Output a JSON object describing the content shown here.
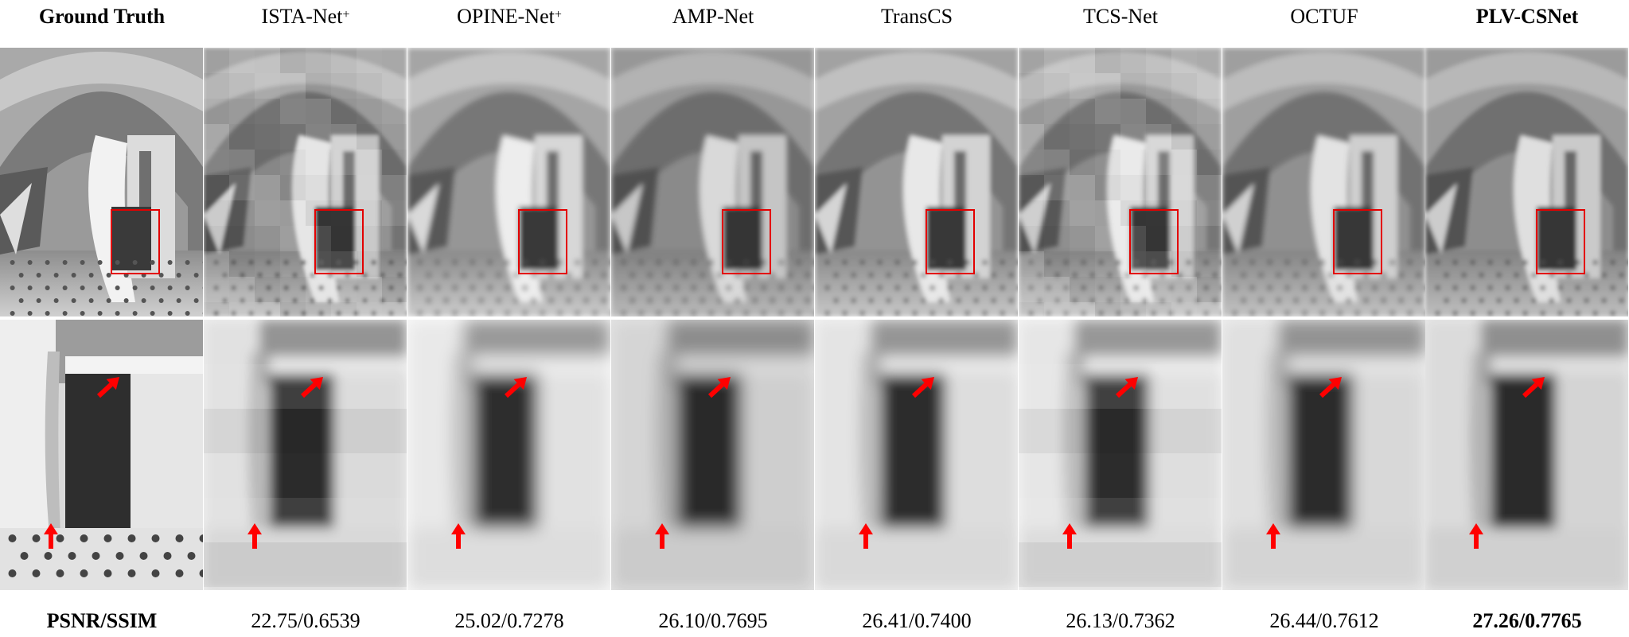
{
  "columns": [
    {
      "id": "gt",
      "name": "Ground Truth",
      "sup": "",
      "bold": true
    },
    {
      "id": "ista",
      "name": "ISTA-Net",
      "sup": "+",
      "bold": false
    },
    {
      "id": "opine",
      "name": "OPINE-Net",
      "sup": "+",
      "bold": false
    },
    {
      "id": "amp",
      "name": "AMP-Net",
      "sup": "",
      "bold": false
    },
    {
      "id": "transcs",
      "name": "TransCS",
      "sup": "",
      "bold": false
    },
    {
      "id": "tcs",
      "name": "TCS-Net",
      "sup": "",
      "bold": false
    },
    {
      "id": "octuf",
      "name": "OCTUF",
      "sup": "",
      "bold": false
    },
    {
      "id": "plv",
      "name": "PLV-CSNet",
      "sup": "",
      "bold": true
    }
  ],
  "footer": {
    "row_label": "PSNR/SSIM",
    "metrics": [
      "22.75/0.6539",
      "25.02/0.7278",
      "26.10/0.7695",
      "26.41/0.7400",
      "26.13/0.7362",
      "26.44/0.7612",
      "27.26/0.7765"
    ]
  },
  "colors": {
    "box": "#e30000",
    "arrow": "#ff0000"
  }
}
